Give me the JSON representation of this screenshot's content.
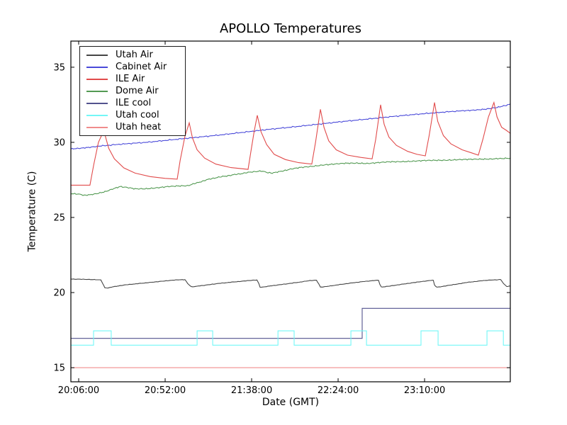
{
  "title": "APOLLO Temperatures",
  "axes": {
    "xlabel": "Date (GMT)",
    "ylabel": "Temperature (C)"
  },
  "chart_data": {
    "type": "line",
    "title": "APOLLO Temperatures",
    "xlabel": "Date (GMT)",
    "ylabel": "Temperature (C)",
    "x_unit": "minutes since 20:06:00 GMT",
    "xlim": [
      -4.15,
      229.6
    ],
    "ylim": [
      14.06,
      36.74
    ],
    "grid": false,
    "legend_position": "upper-left",
    "x_ticks": [
      {
        "t": 0,
        "label": "20:06:00"
      },
      {
        "t": 46,
        "label": "20:52:00"
      },
      {
        "t": 92,
        "label": "21:38:00"
      },
      {
        "t": 138,
        "label": "22:24:00"
      },
      {
        "t": 184,
        "label": "23:10:00"
      }
    ],
    "y_ticks": [
      {
        "t": 15,
        "label": "15"
      },
      {
        "t": 20,
        "label": "20"
      },
      {
        "t": 25,
        "label": "25"
      },
      {
        "t": 30,
        "label": "30"
      },
      {
        "t": 35,
        "label": "35"
      }
    ],
    "series": [
      {
        "name": "Utah Air",
        "color": "#454545",
        "noise": 0.018,
        "points": [
          [
            -4.15,
            20.9
          ],
          [
            3,
            20.88
          ],
          [
            9,
            20.86
          ],
          [
            11.8,
            20.84
          ],
          [
            12.8,
            20.6
          ],
          [
            13.9,
            20.32
          ],
          [
            15.5,
            20.3
          ],
          [
            18,
            20.38
          ],
          [
            24,
            20.5
          ],
          [
            32,
            20.6
          ],
          [
            40,
            20.7
          ],
          [
            48,
            20.8
          ],
          [
            53,
            20.85
          ],
          [
            56.5,
            20.86
          ],
          [
            58,
            20.6
          ],
          [
            59.9,
            20.38
          ],
          [
            61.5,
            20.4
          ],
          [
            66,
            20.47
          ],
          [
            74,
            20.6
          ],
          [
            82,
            20.7
          ],
          [
            89,
            20.78
          ],
          [
            93,
            20.82
          ],
          [
            94.8,
            20.83
          ],
          [
            95.8,
            20.6
          ],
          [
            96.5,
            20.37
          ],
          [
            98,
            20.36
          ],
          [
            102,
            20.44
          ],
          [
            110,
            20.57
          ],
          [
            118,
            20.7
          ],
          [
            123,
            20.8
          ],
          [
            126.5,
            20.82
          ],
          [
            127.6,
            20.6
          ],
          [
            128.6,
            20.36
          ],
          [
            130.5,
            20.38
          ],
          [
            136,
            20.48
          ],
          [
            144,
            20.62
          ],
          [
            152,
            20.74
          ],
          [
            157,
            20.8
          ],
          [
            159.5,
            20.82
          ],
          [
            160.2,
            20.55
          ],
          [
            161,
            20.36
          ],
          [
            163,
            20.39
          ],
          [
            169,
            20.5
          ],
          [
            177,
            20.64
          ],
          [
            184,
            20.76
          ],
          [
            187.5,
            20.81
          ],
          [
            188.6,
            20.82
          ],
          [
            189.3,
            20.5
          ],
          [
            190.5,
            20.36
          ],
          [
            193,
            20.4
          ],
          [
            200,
            20.54
          ],
          [
            207,
            20.68
          ],
          [
            214,
            20.78
          ],
          [
            220,
            20.84
          ],
          [
            224.5,
            20.86
          ],
          [
            226,
            20.6
          ],
          [
            227.7,
            20.4
          ],
          [
            229.6,
            20.43
          ]
        ]
      },
      {
        "name": "Cabinet Air",
        "color": "#4a4ad9",
        "noise": 0.045,
        "points": [
          [
            -4.15,
            29.55
          ],
          [
            0,
            29.6
          ],
          [
            6,
            29.68
          ],
          [
            12,
            29.76
          ],
          [
            20,
            29.85
          ],
          [
            28,
            29.93
          ],
          [
            36,
            30.0
          ],
          [
            44,
            30.1
          ],
          [
            52,
            30.2
          ],
          [
            60,
            30.3
          ],
          [
            68,
            30.4
          ],
          [
            76,
            30.5
          ],
          [
            84,
            30.62
          ],
          [
            92,
            30.73
          ],
          [
            100,
            30.85
          ],
          [
            108,
            30.95
          ],
          [
            116,
            31.05
          ],
          [
            124,
            31.16
          ],
          [
            132,
            31.27
          ],
          [
            140,
            31.38
          ],
          [
            148,
            31.48
          ],
          [
            156,
            31.58
          ],
          [
            164,
            31.68
          ],
          [
            172,
            31.78
          ],
          [
            180,
            31.87
          ],
          [
            188,
            31.95
          ],
          [
            196,
            32.03
          ],
          [
            204,
            32.1
          ],
          [
            210,
            32.15
          ],
          [
            216,
            32.2
          ],
          [
            222,
            32.3
          ],
          [
            226,
            32.42
          ],
          [
            229.6,
            32.55
          ]
        ]
      },
      {
        "name": "ILE Air",
        "color": "#e14b4b",
        "noise": 0,
        "points": [
          [
            -4.15,
            27.15
          ],
          [
            2,
            27.15
          ],
          [
            6,
            27.15
          ],
          [
            8,
            28.5
          ],
          [
            10.5,
            30.0
          ],
          [
            12.5,
            30.55
          ],
          [
            14,
            30.5
          ],
          [
            16,
            29.6
          ],
          [
            19,
            28.9
          ],
          [
            24,
            28.3
          ],
          [
            30,
            27.95
          ],
          [
            38,
            27.72
          ],
          [
            46,
            27.6
          ],
          [
            52.4,
            27.55
          ],
          [
            54,
            28.8
          ],
          [
            56.5,
            30.4
          ],
          [
            58.8,
            31.3
          ],
          [
            60.5,
            30.3
          ],
          [
            63,
            29.5
          ],
          [
            67,
            28.95
          ],
          [
            73,
            28.55
          ],
          [
            81,
            28.32
          ],
          [
            90.1,
            28.2
          ],
          [
            91.5,
            29.3
          ],
          [
            93.3,
            30.7
          ],
          [
            95,
            31.8
          ],
          [
            97,
            30.7
          ],
          [
            100,
            29.85
          ],
          [
            104,
            29.2
          ],
          [
            110,
            28.85
          ],
          [
            117,
            28.65
          ],
          [
            124,
            28.55
          ],
          [
            126,
            30.0
          ],
          [
            128.6,
            32.2
          ],
          [
            130.5,
            31.0
          ],
          [
            133,
            30.1
          ],
          [
            137,
            29.5
          ],
          [
            143,
            29.15
          ],
          [
            150,
            29.0
          ],
          [
            156.1,
            28.9
          ],
          [
            158,
            30.2
          ],
          [
            160.6,
            32.5
          ],
          [
            162.5,
            31.2
          ],
          [
            165,
            30.35
          ],
          [
            169,
            29.8
          ],
          [
            175,
            29.4
          ],
          [
            180,
            29.2
          ],
          [
            184.4,
            29.1
          ],
          [
            186.5,
            30.5
          ],
          [
            189.3,
            32.65
          ],
          [
            191,
            31.4
          ],
          [
            194,
            30.45
          ],
          [
            198,
            29.9
          ],
          [
            204,
            29.5
          ],
          [
            209,
            29.3
          ],
          [
            212.6,
            29.15
          ],
          [
            215,
            30.2
          ],
          [
            218,
            31.7
          ],
          [
            220.9,
            32.65
          ],
          [
            222.5,
            31.7
          ],
          [
            225,
            31.0
          ],
          [
            227.5,
            30.8
          ],
          [
            229.6,
            30.6
          ]
        ]
      },
      {
        "name": "Dome Air",
        "color": "#539a53",
        "noise": 0.05,
        "points": [
          [
            -4.15,
            26.6
          ],
          [
            0,
            26.55
          ],
          [
            3,
            26.48
          ],
          [
            6,
            26.5
          ],
          [
            10,
            26.6
          ],
          [
            14,
            26.72
          ],
          [
            18,
            26.9
          ],
          [
            22,
            27.05
          ],
          [
            26,
            26.98
          ],
          [
            30,
            26.9
          ],
          [
            36,
            26.92
          ],
          [
            42,
            26.98
          ],
          [
            48,
            27.05
          ],
          [
            54,
            27.1
          ],
          [
            58,
            27.12
          ],
          [
            63,
            27.3
          ],
          [
            68,
            27.5
          ],
          [
            73,
            27.65
          ],
          [
            78,
            27.75
          ],
          [
            83,
            27.85
          ],
          [
            88,
            27.95
          ],
          [
            93,
            28.05
          ],
          [
            97,
            28.1
          ],
          [
            100,
            28.0
          ],
          [
            103,
            27.95
          ],
          [
            107,
            28.05
          ],
          [
            112,
            28.2
          ],
          [
            118,
            28.32
          ],
          [
            124,
            28.4
          ],
          [
            130,
            28.5
          ],
          [
            136,
            28.55
          ],
          [
            142,
            28.6
          ],
          [
            148,
            28.62
          ],
          [
            154,
            28.6
          ],
          [
            160,
            28.65
          ],
          [
            166,
            28.7
          ],
          [
            172,
            28.72
          ],
          [
            178,
            28.75
          ],
          [
            184,
            28.78
          ],
          [
            190,
            28.8
          ],
          [
            196,
            28.82
          ],
          [
            202,
            28.85
          ],
          [
            208,
            28.86
          ],
          [
            214,
            28.88
          ],
          [
            220,
            28.9
          ],
          [
            225,
            28.92
          ],
          [
            229.6,
            28.95
          ]
        ]
      },
      {
        "name": "ILE cool",
        "color": "#52528e",
        "noise": 0,
        "points": [
          [
            -4.15,
            16.95
          ],
          [
            150.8,
            16.95
          ],
          [
            150.8,
            18.95
          ],
          [
            229.6,
            18.95
          ]
        ]
      },
      {
        "name": "Utah cool",
        "color": "#73f7f7",
        "noise": 0,
        "points": [
          [
            -4.15,
            16.5
          ],
          [
            7.9,
            16.5
          ],
          [
            7.9,
            17.45
          ],
          [
            17.3,
            17.45
          ],
          [
            17.3,
            16.5
          ],
          [
            63,
            16.5
          ],
          [
            63,
            17.45
          ],
          [
            71.3,
            17.45
          ],
          [
            71.3,
            16.5
          ],
          [
            106,
            16.5
          ],
          [
            106,
            17.45
          ],
          [
            114.6,
            17.45
          ],
          [
            114.6,
            16.5
          ],
          [
            144.8,
            16.5
          ],
          [
            144.8,
            17.45
          ],
          [
            153.1,
            17.45
          ],
          [
            153.1,
            16.5
          ],
          [
            182.1,
            16.5
          ],
          [
            182.1,
            17.45
          ],
          [
            191.2,
            17.45
          ],
          [
            191.2,
            16.5
          ],
          [
            217.2,
            16.5
          ],
          [
            217.2,
            17.45
          ],
          [
            225.9,
            17.45
          ],
          [
            225.9,
            16.5
          ],
          [
            229.6,
            16.5
          ]
        ]
      },
      {
        "name": "Utah heat",
        "color": "#f08c8c",
        "noise": 0,
        "points": [
          [
            -4.15,
            15.0
          ],
          [
            229.6,
            15.0
          ]
        ]
      }
    ]
  }
}
